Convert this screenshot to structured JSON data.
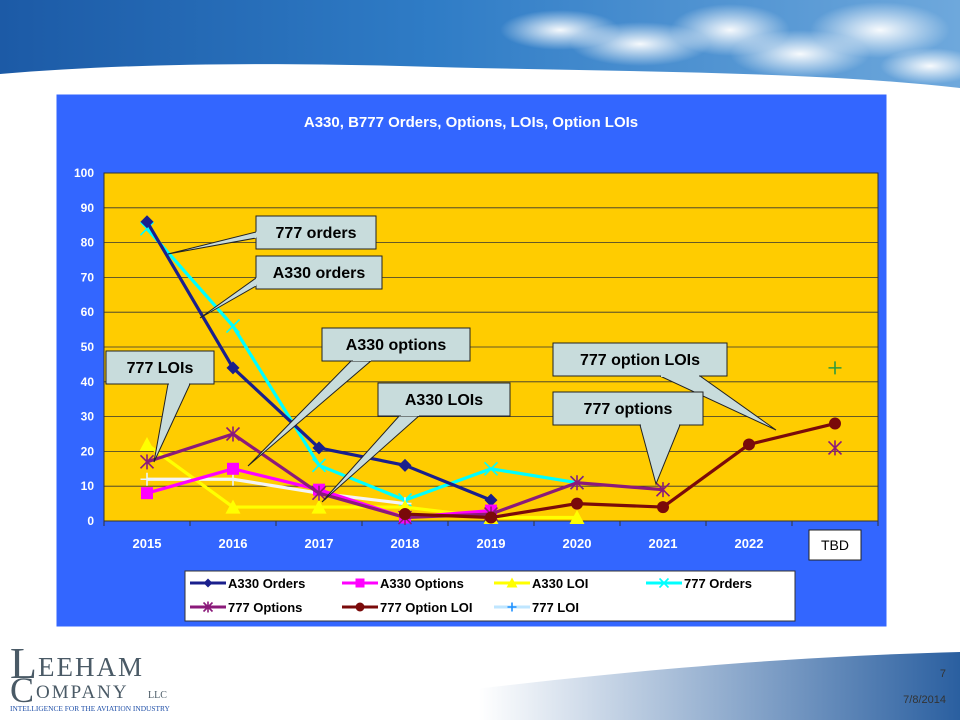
{
  "chart_data": {
    "type": "line",
    "title": "A330, B777 Orders, Options, LOIs, Option LOIs",
    "categories": [
      "2015",
      "2016",
      "2017",
      "2018",
      "2019",
      "2020",
      "2021",
      "2022",
      "TBD"
    ],
    "ylim": [
      0,
      100
    ],
    "yticks": [
      0,
      10,
      20,
      30,
      40,
      50,
      60,
      70,
      80,
      90,
      100
    ],
    "grid": true,
    "legend_position": "bottom",
    "series": [
      {
        "name": "A330 Orders",
        "color": "#1a1f8c",
        "marker": "diamond",
        "values": [
          86,
          44,
          21,
          16,
          6,
          null,
          null,
          null,
          null
        ]
      },
      {
        "name": "A330 Options",
        "color": "#ff00ff",
        "marker": "square",
        "values": [
          8,
          15,
          9,
          1,
          3,
          null,
          null,
          null,
          null
        ]
      },
      {
        "name": "A330 LOI",
        "color": "#ffff00",
        "marker": "triangle",
        "values": [
          22,
          4,
          4,
          4,
          1,
          1,
          null,
          null,
          null
        ]
      },
      {
        "name": "777 Orders",
        "color": "#00ffff",
        "marker": "x",
        "values": [
          84,
          56,
          16,
          6,
          15,
          11,
          null,
          null,
          null
        ]
      },
      {
        "name": "777 Options",
        "color": "#8b1a7a",
        "marker": "star",
        "values": [
          17,
          25,
          8,
          1,
          2,
          11,
          9,
          null,
          21
        ]
      },
      {
        "name": "777 Option LOI",
        "color": "#7a0a0a",
        "marker": "circle",
        "values": [
          null,
          null,
          null,
          2,
          1,
          5,
          4,
          22,
          28
        ]
      },
      {
        "name": "777 LOI",
        "color": "#ffffff",
        "marker": "plus",
        "values": [
          12,
          12,
          8,
          5,
          null,
          null,
          null,
          null,
          44
        ]
      }
    ],
    "callouts": [
      {
        "id": "callout-777-orders",
        "text": "777 orders"
      },
      {
        "id": "callout-a330-orders",
        "text": "A330 orders"
      },
      {
        "id": "callout-a330-options",
        "text": "A330 options"
      },
      {
        "id": "callout-777-lois",
        "text": "777 LOIs"
      },
      {
        "id": "callout-a330-lois",
        "text": "A330 LOIs"
      },
      {
        "id": "callout-777-option-lois",
        "text": "777 option LOIs"
      },
      {
        "id": "callout-777-options",
        "text": "777 options"
      }
    ]
  },
  "logo": {
    "letter_l": "L",
    "word_top": "EEHAM",
    "letter_c": "C",
    "word_bottom": "OMPANY",
    "suffix": "LLC",
    "tagline": "INTELLIGENCE FOR THE AVIATION INDUSTRY"
  },
  "footer": {
    "page_number": "7",
    "date": "7/8/2014"
  },
  "colors": {
    "chart_area": "#3366ff",
    "plot_area": "#ffcc00",
    "callout_fill": "#c8dcdc",
    "banner": "#1e5fa8"
  }
}
